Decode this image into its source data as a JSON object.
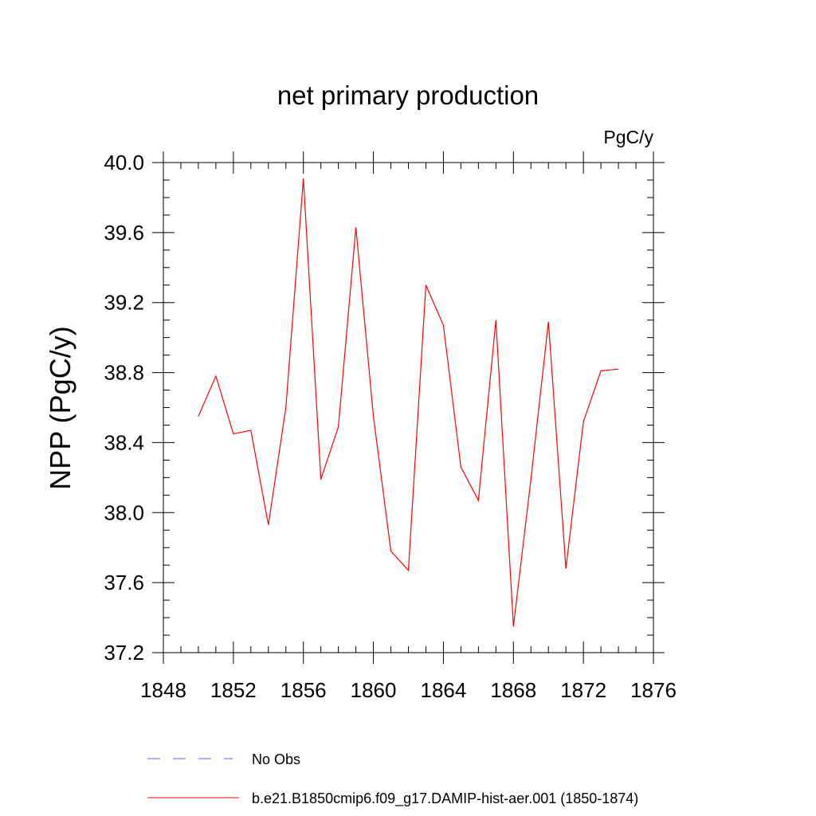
{
  "chart_data": {
    "type": "line",
    "title": "net primary production",
    "units_label": "PgC/y",
    "ylabel": "NPP  (PgC/y)",
    "xlabel": "",
    "xlim": [
      1848,
      1876
    ],
    "ylim": [
      37.2,
      40.0
    ],
    "x_ticks": [
      1848,
      1852,
      1856,
      1860,
      1864,
      1868,
      1872,
      1876
    ],
    "x_tick_labels": [
      "1848",
      "1852",
      "1856",
      "1860",
      "1864",
      "1868",
      "1872",
      "1876"
    ],
    "y_ticks": [
      37.2,
      37.6,
      38.0,
      38.4,
      38.8,
      39.2,
      39.6,
      40.0
    ],
    "y_tick_labels": [
      "37.2",
      "37.6",
      "38.0",
      "38.4",
      "38.8",
      "39.2",
      "39.6",
      "40.0"
    ],
    "x_minor_step": 1,
    "y_minor_step": 0.1,
    "grid": false,
    "legend_position": "bottom",
    "series": [
      {
        "name": "b.e21.B1850cmip6.f09_g17.DAMIP-hist-aer.001 (1850-1874)",
        "color": "#ff0000",
        "style": "solid",
        "x": [
          1850,
          1851,
          1852,
          1853,
          1854,
          1855,
          1856,
          1857,
          1858,
          1859,
          1860,
          1861,
          1862,
          1863,
          1864,
          1865,
          1866,
          1867,
          1868,
          1869,
          1870,
          1871,
          1872,
          1873,
          1874
        ],
        "values": [
          38.55,
          38.78,
          38.45,
          38.47,
          37.93,
          38.6,
          39.91,
          38.19,
          38.49,
          39.63,
          38.55,
          37.78,
          37.67,
          39.3,
          39.07,
          38.26,
          38.07,
          39.1,
          37.35,
          38.19,
          39.09,
          37.68,
          38.52,
          38.81,
          38.82
        ]
      }
    ],
    "legend": [
      {
        "label": "No Obs",
        "color": "#6a5acd",
        "style": "dashed"
      },
      {
        "label": "b.e21.B1850cmip6.f09_g17.DAMIP-hist-aer.001 (1850-1874)",
        "color": "#ff0000",
        "style": "solid"
      }
    ]
  }
}
